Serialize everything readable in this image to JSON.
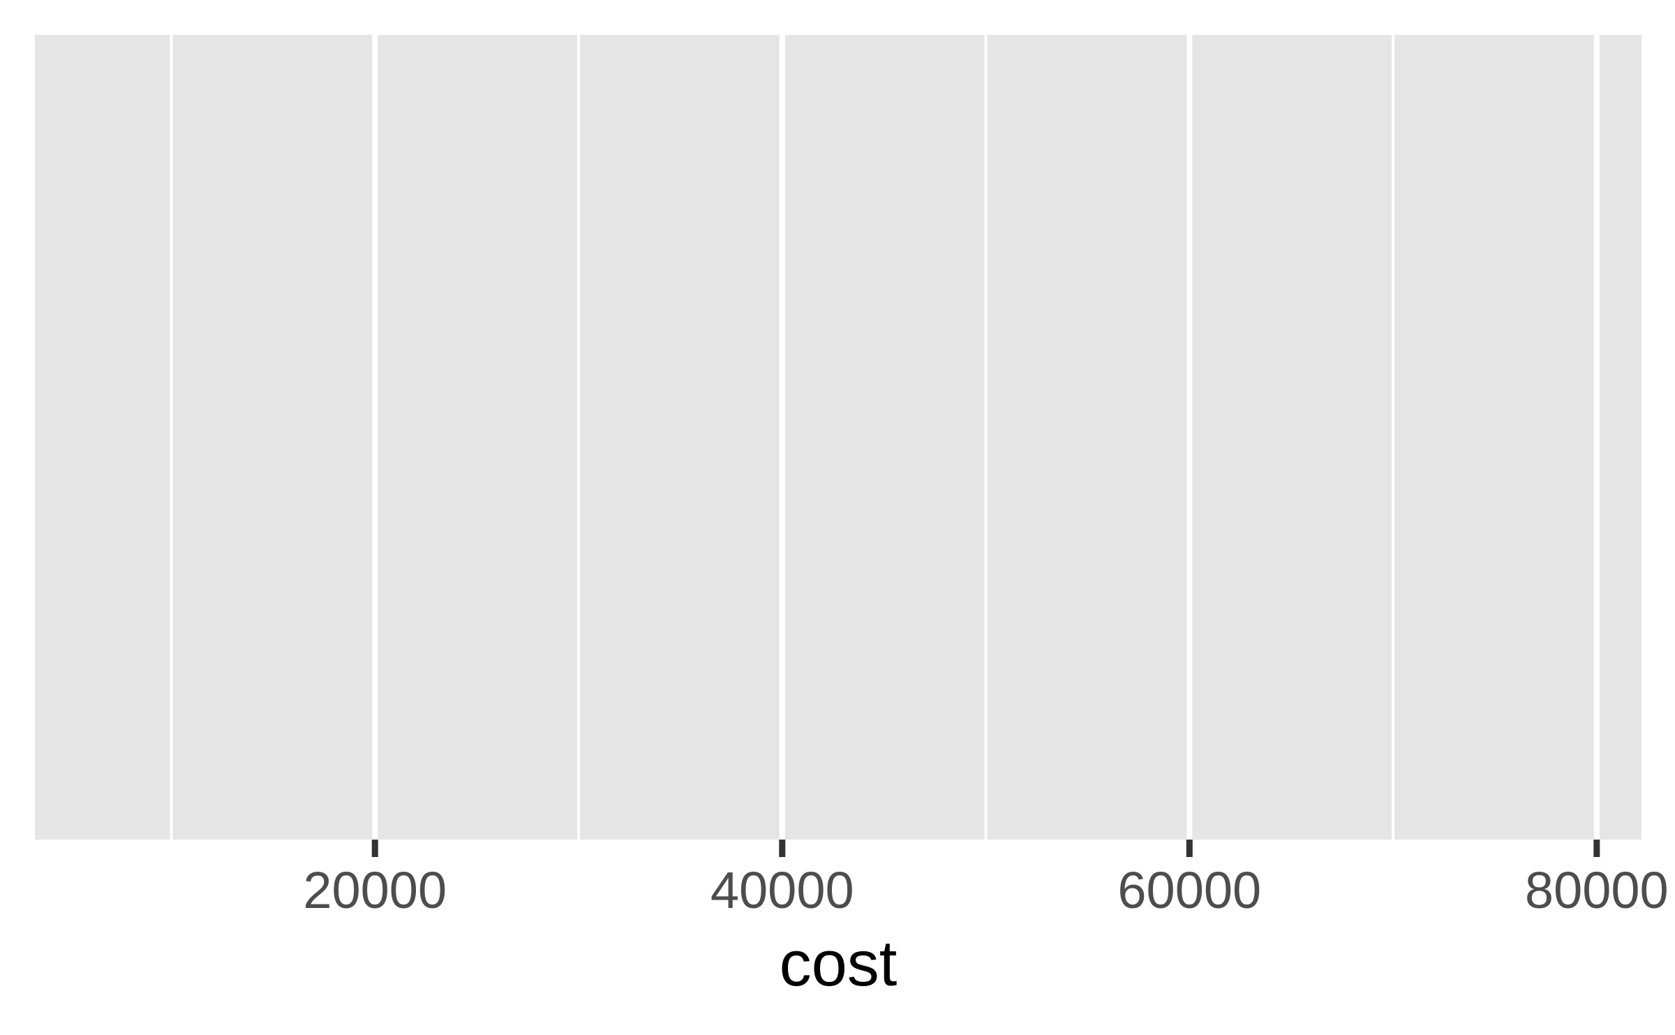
{
  "chart_data": {
    "type": "scatter",
    "title": "",
    "xlabel": "cost",
    "ylabel": "",
    "xlim": [
      3300,
      82200
    ],
    "x_ticks": [
      20000,
      40000,
      60000,
      80000
    ],
    "x_tick_labels": [
      "20000",
      "40000",
      "60000",
      "80000"
    ],
    "x_minor_ticks": [
      10000,
      30000,
      50000,
      70000
    ],
    "series": [],
    "grid": true,
    "legend": "none"
  },
  "colors": {
    "panel_background": "#e5e5e5",
    "grid_line": "#ffffff",
    "tick_mark": "#333333",
    "tick_label": "#4d4d4d",
    "axis_title": "#000000"
  }
}
